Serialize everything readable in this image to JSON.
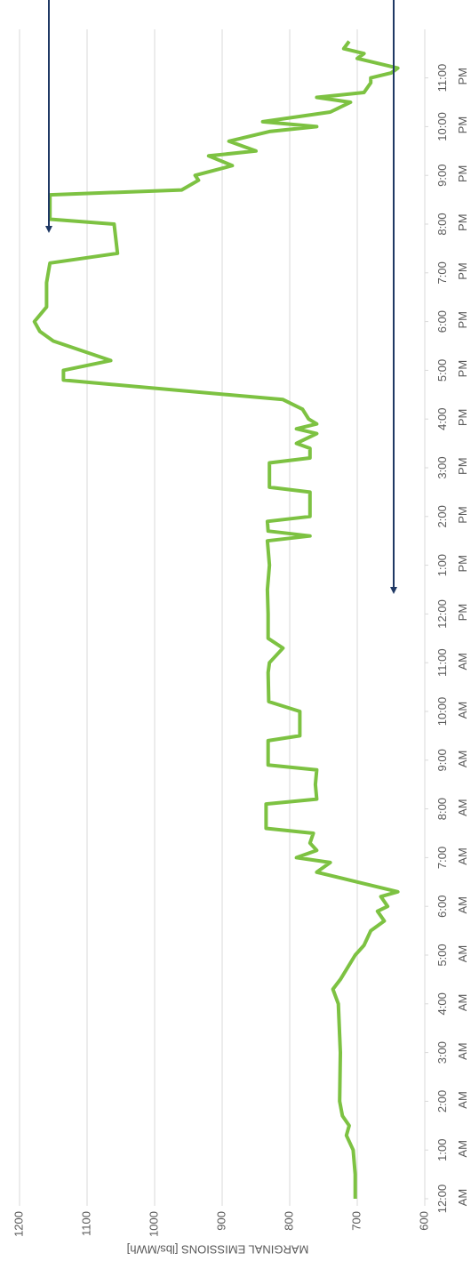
{
  "chart_data": {
    "type": "line",
    "y_label": "MARGINAL EMISSIONS [lbs/MWh]",
    "x": [
      0,
      0.5,
      1.0,
      1.3,
      1.5,
      1.7,
      2.0,
      3.0,
      4.0,
      4.3,
      4.5,
      5.0,
      5.2,
      5.5,
      5.7,
      5.9,
      6.0,
      6.2,
      6.3,
      6.5,
      6.7,
      6.9,
      7.0,
      7.15,
      7.3,
      7.5,
      7.6,
      8.1,
      8.2,
      8.5,
      8.8,
      8.9,
      9.4,
      9.5,
      10.0,
      10.2,
      10.8,
      11.0,
      11.3,
      11.5,
      12.0,
      12.5,
      13.0,
      13.5,
      13.6,
      13.7,
      13.9,
      14.0,
      14.5,
      14.6,
      15.1,
      15.2,
      15.4,
      15.5,
      15.7,
      15.8,
      15.9,
      16.0,
      16.2,
      16.4,
      16.5,
      16.8,
      17.0,
      17.2,
      17.6,
      17.8,
      18.0,
      18.3,
      18.8,
      19.2,
      19.4,
      20.0,
      20.1,
      20.6,
      20.7,
      20.9,
      21.0,
      21.2,
      21.4,
      21.5,
      21.7,
      21.9,
      22.0,
      22.1,
      22.3,
      22.5,
      22.6,
      22.7,
      22.9,
      23.0,
      23.1,
      23.2,
      23.4,
      23.5,
      23.6,
      23.75
    ],
    "values": [
      703,
      703,
      706,
      716,
      712,
      722,
      726,
      725,
      728,
      736,
      725,
      703,
      690,
      680,
      660,
      670,
      655,
      665,
      640,
      700,
      760,
      740,
      790,
      760,
      770,
      765,
      835,
      835,
      760,
      762,
      760,
      832,
      832,
      785,
      785,
      831,
      832,
      830,
      810,
      832,
      832,
      833,
      830,
      833,
      770,
      832,
      833,
      770,
      770,
      830,
      830,
      770,
      770,
      790,
      760,
      790,
      760,
      772,
      781,
      810,
      893,
      1135,
      1135,
      1065,
      1150,
      1170,
      1178,
      1160,
      1160,
      1155,
      1055,
      1060,
      1155,
      1155,
      960,
      935,
      940,
      885,
      920,
      850,
      890,
      830,
      760,
      840,
      740,
      710,
      760,
      690,
      680,
      680,
      650,
      640,
      700,
      690,
      720,
      712
    ],
    "color": "#7dc242",
    "xlim": [
      0,
      24
    ],
    "xticks": [
      {
        "value": 0,
        "label": "12:00 AM"
      },
      {
        "value": 1,
        "label": "1:00 AM"
      },
      {
        "value": 2,
        "label": "2:00 AM"
      },
      {
        "value": 3,
        "label": "3:00 AM"
      },
      {
        "value": 4,
        "label": "4:00 AM"
      },
      {
        "value": 5,
        "label": "5:00 AM"
      },
      {
        "value": 6,
        "label": "6:00 AM"
      },
      {
        "value": 7,
        "label": "7:00 AM"
      },
      {
        "value": 8,
        "label": "8:00 AM"
      },
      {
        "value": 9,
        "label": "9:00 AM"
      },
      {
        "value": 10,
        "label": "10:00 AM"
      },
      {
        "value": 11,
        "label": "11:00 AM"
      },
      {
        "value": 12,
        "label": "12:00 PM"
      },
      {
        "value": 13,
        "label": "1:00 PM"
      },
      {
        "value": 14,
        "label": "2:00 PM"
      },
      {
        "value": 15,
        "label": "3:00 PM"
      },
      {
        "value": 16,
        "label": "4:00 PM"
      },
      {
        "value": 17,
        "label": "5:00 PM"
      },
      {
        "value": 18,
        "label": "6:00 PM"
      },
      {
        "value": 19,
        "label": "7:00 PM"
      },
      {
        "value": 20,
        "label": "8:00 PM"
      },
      {
        "value": 21,
        "label": "9:00 PM"
      },
      {
        "value": 22,
        "label": "10:00 PM"
      },
      {
        "value": 23,
        "label": "11:00 PM"
      }
    ],
    "ylim": [
      600,
      1200
    ],
    "yticks": [
      600,
      700,
      800,
      900,
      1000,
      1100,
      1200
    ],
    "grid": true
  }
}
